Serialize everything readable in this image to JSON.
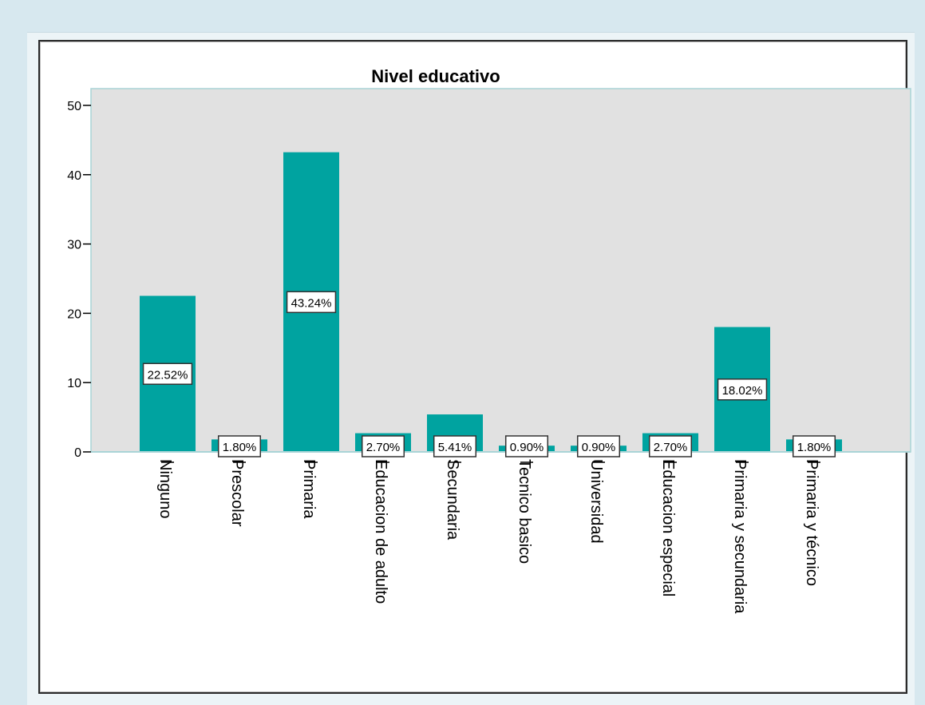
{
  "chart_data": {
    "type": "bar",
    "title": "Nivel  educativo",
    "xlabel": "",
    "ylabel": "",
    "ylim": [
      0,
      50
    ],
    "yticks": [
      "0",
      "10",
      "20",
      "30",
      "40",
      "50"
    ],
    "categories": [
      "Ninguno",
      "Prescolar",
      "Primaria",
      "Educacion de adulto",
      "Secundaria",
      "Tecnico basico",
      "Universidad",
      "Educacion especial",
      "Primaria y  secundaria",
      "Primaria y técnico"
    ],
    "values": [
      22.52,
      1.8,
      43.24,
      2.7,
      5.41,
      0.9,
      0.9,
      2.7,
      18.02,
      1.8
    ],
    "data_labels": [
      "22.52%",
      "1.80%",
      "43.24%",
      "2.70%",
      "5.41%",
      "0.90%",
      "0.90%",
      "2.70%",
      "18.02%",
      "1.80%"
    ],
    "bar_color": "#00a3a0",
    "plot_background": "#e1e1e1",
    "grid": false,
    "legend": "none"
  }
}
